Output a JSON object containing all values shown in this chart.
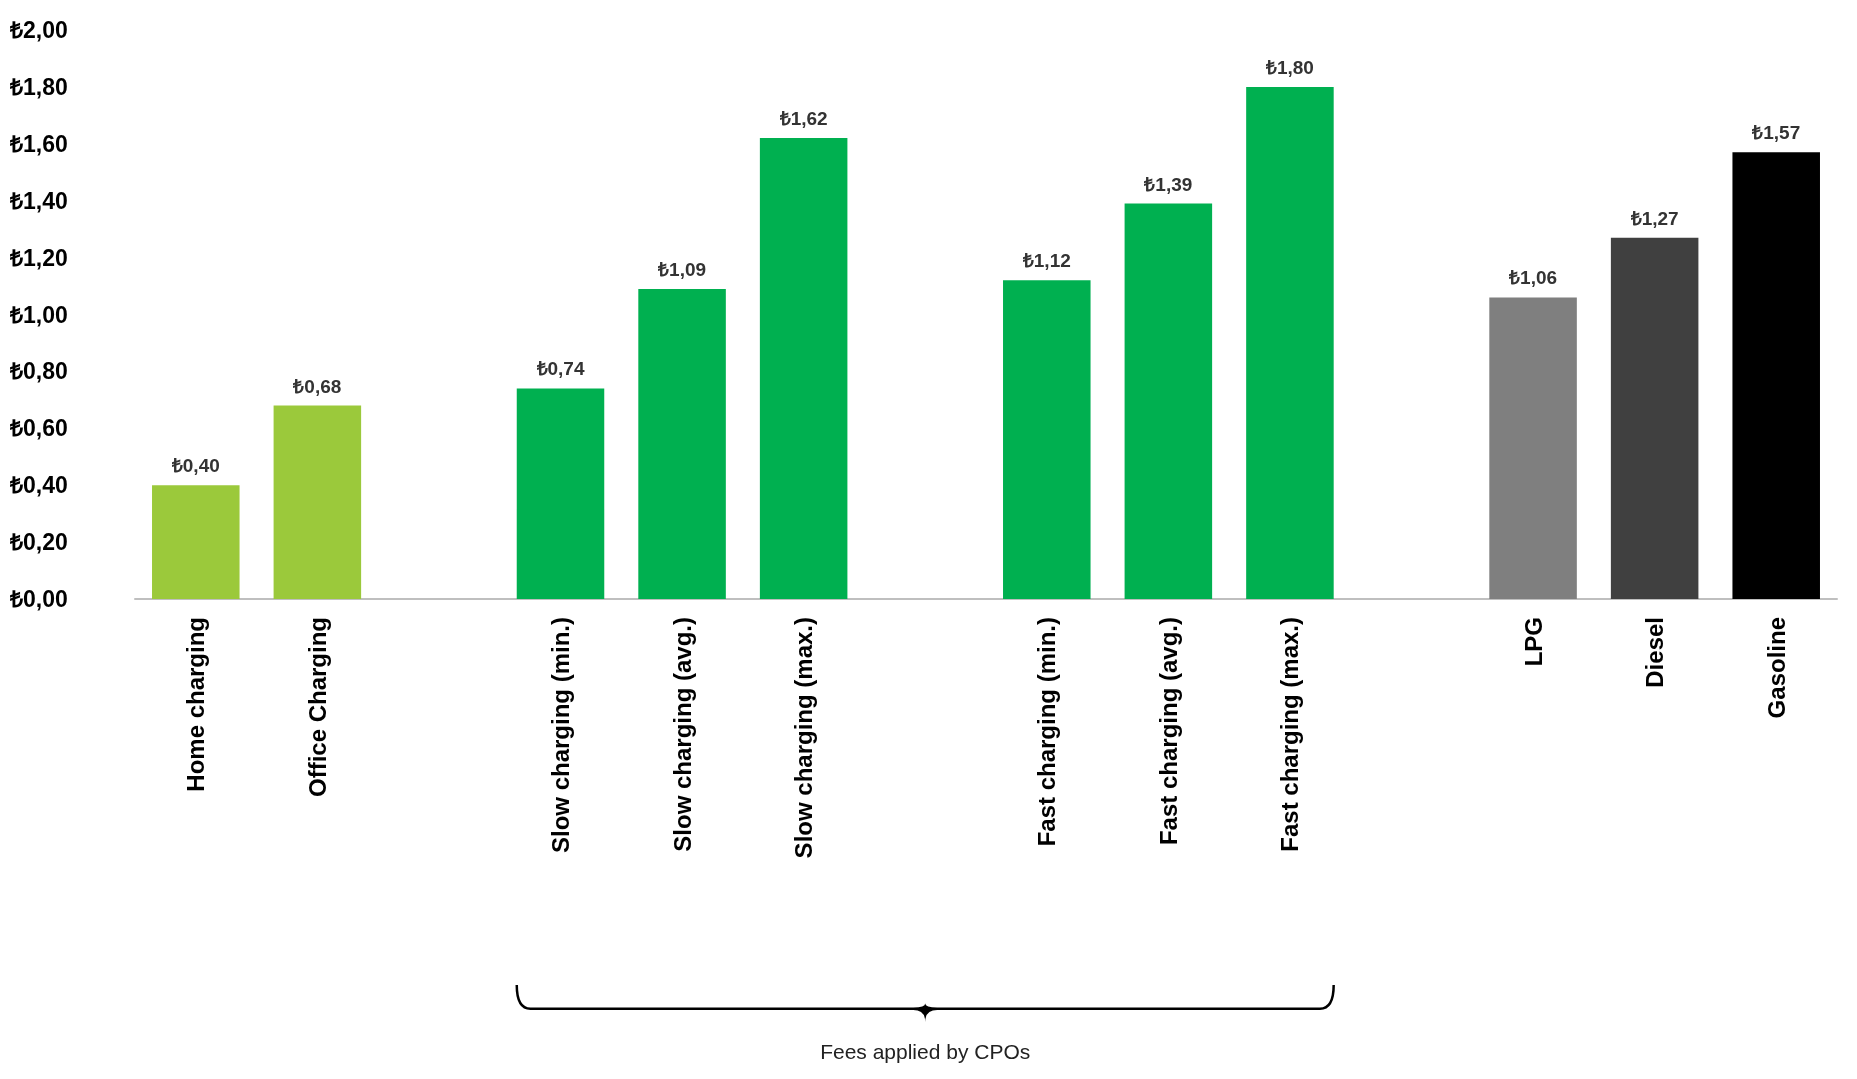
{
  "chart_data": {
    "type": "bar",
    "categories": [
      "Home charging",
      "Office Charging",
      null,
      "Slow charging (min.)",
      "Slow charging (avg.)",
      "Slow charging (max.)",
      null,
      "Fast charging (min.)",
      "Fast charging (avg.)",
      "Fast charging (max.)",
      null,
      "LPG",
      "Diesel",
      "Gasoline"
    ],
    "values": [
      0.4,
      0.68,
      null,
      0.74,
      1.09,
      1.62,
      null,
      1.12,
      1.39,
      1.8,
      null,
      1.06,
      1.27,
      1.57
    ],
    "colors": [
      "#9bc93b",
      "#9bc93b",
      null,
      "#00b050",
      "#00b050",
      "#00b050",
      null,
      "#00b050",
      "#00b050",
      "#00b050",
      null,
      "#7f7f7f",
      "#404040",
      "#000000"
    ],
    "value_labels": [
      "₺0,40",
      "₺0,68",
      null,
      "₺0,74",
      "₺1,09",
      "₺1,62",
      null,
      "₺1,12",
      "₺1,39",
      "₺1,80",
      null,
      "₺1,06",
      "₺1,27",
      "₺1,57"
    ],
    "ylim": [
      0,
      2
    ],
    "yticks": [
      {
        "value": 0,
        "label": "₺0,00"
      },
      {
        "value": 0.2,
        "label": "₺0,20"
      },
      {
        "value": 0.4,
        "label": "₺0,40"
      },
      {
        "value": 0.6,
        "label": "₺0,60"
      },
      {
        "value": 0.8,
        "label": "₺0,80"
      },
      {
        "value": 1,
        "label": "₺1,00"
      },
      {
        "value": 1.2,
        "label": "₺1,20"
      },
      {
        "value": 1.4,
        "label": "₺1,40"
      },
      {
        "value": 1.6,
        "label": "₺1,60"
      },
      {
        "value": 1.8,
        "label": "₺1,80"
      },
      {
        "value": 2,
        "label": "₺2,00"
      }
    ],
    "grid": false,
    "annotations": [
      "Fees applied by CPOs"
    ]
  }
}
